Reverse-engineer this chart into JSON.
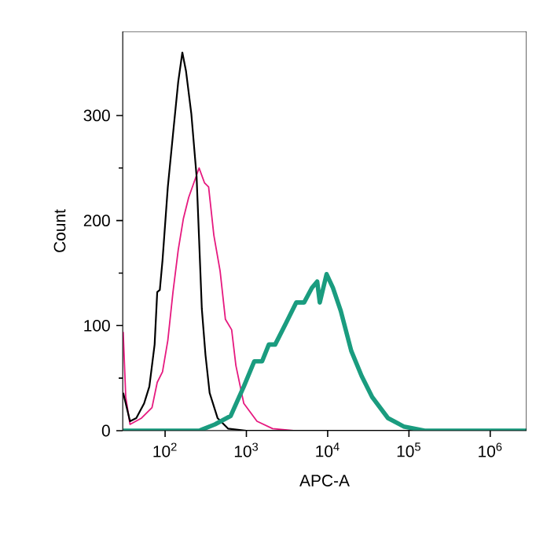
{
  "chart_data": {
    "type": "line",
    "xlabel": "APC-A",
    "ylabel": "Count",
    "log": "x",
    "grid": false,
    "marker": "none",
    "line_style": "solid",
    "xlim": [
      30,
      2800000
    ],
    "ylim": [
      0,
      380
    ],
    "xticks": [
      {
        "value": 100,
        "label": "10$^{2}$"
      },
      {
        "value": 1000,
        "label": "10$^{3}$"
      },
      {
        "value": 10000,
        "label": "10$^{4}$"
      },
      {
        "value": 100000,
        "label": "10$^{5}$"
      },
      {
        "value": 1000000,
        "label": "10$^{6}$"
      }
    ],
    "yticks": [
      0,
      100,
      200,
      300
    ],
    "series": [
      {
        "color": "#e6197f",
        "x": [
          30.5,
          32.8,
          37.0,
          51.3,
          69.0,
          80.0,
          92.9,
          108,
          125,
          145,
          168,
          195,
          226,
          262,
          305,
          343,
          398,
          475,
          552,
          659,
          743,
          929,
          1350,
          2100,
          3810,
          2800000
        ],
        "values": [
          94,
          32,
          6,
          12,
          22,
          46,
          56,
          86,
          132,
          172,
          202,
          222,
          236,
          250,
          236,
          232,
          186,
          152,
          106,
          96,
          62,
          26,
          9,
          2,
          0,
          0
        ]
      },
      {
        "color": "#000000",
        "x": [
          30.5,
          37.0,
          44.2,
          55.2,
          64.0,
          74.3,
          80.0,
          86.1,
          92.9,
          108,
          125,
          145,
          163,
          181,
          210,
          244,
          262,
          283,
          314,
          353,
          442,
          594,
          1000,
          2800000
        ],
        "values": [
          36,
          9,
          12,
          26,
          42,
          82,
          132,
          134,
          162,
          232,
          282,
          332,
          360,
          342,
          302,
          242,
          182,
          116,
          72,
          36,
          12,
          2,
          0,
          0
        ]
      },
      {
        "color": "#1a9c7f",
        "x": [
          30.5,
          262,
          410,
          640,
          929,
          1250,
          1560,
          1890,
          2260,
          3050,
          4100,
          5130,
          6400,
          7430,
          8000,
          9700,
          11600,
          14500,
          19500,
          26200,
          35300,
          55200,
          86100,
          156000,
          2800000
        ],
        "values": [
          0,
          0,
          6,
          14,
          42,
          66,
          66,
          82,
          82,
          102,
          122,
          122,
          136,
          142,
          122,
          149,
          136,
          114,
          76,
          52,
          32,
          12,
          4,
          0,
          0
        ]
      }
    ]
  }
}
